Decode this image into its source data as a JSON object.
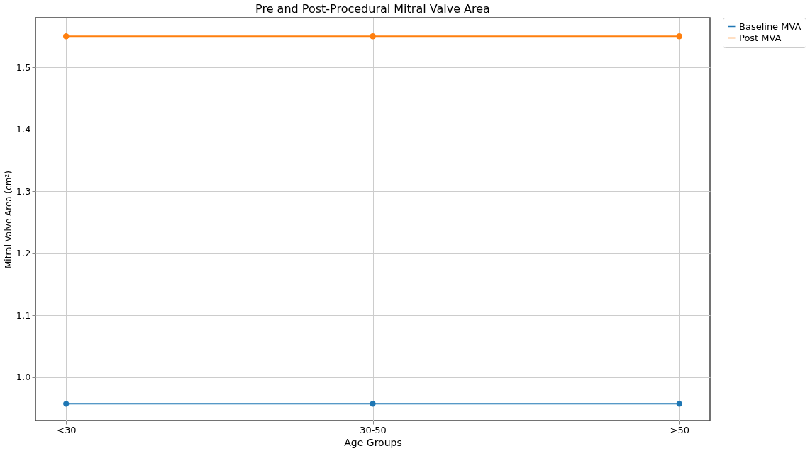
{
  "chart_data": {
    "type": "line",
    "title": "Pre and Post-Procedural Mitral Valve Area",
    "xlabel": "Age Groups",
    "ylabel": "Mitral Valve Area (cm²)",
    "categories": [
      "<30",
      "30-50",
      ">50"
    ],
    "series": [
      {
        "name": "Baseline MVA",
        "color": "#1f77b4",
        "values": [
          0.957,
          0.957,
          0.957
        ]
      },
      {
        "name": "Post MVA",
        "color": "#ff7f0e",
        "values": [
          1.55,
          1.55,
          1.55
        ]
      }
    ],
    "ylim": [
      0.93,
      1.58
    ],
    "yticks": [
      {
        "value": 1,
        "label": "1.0"
      },
      1.1,
      1.2,
      1.3,
      1.4,
      1.5
    ],
    "grid": true,
    "legend": "right",
    "marker": "circle",
    "line_style": "solid"
  }
}
